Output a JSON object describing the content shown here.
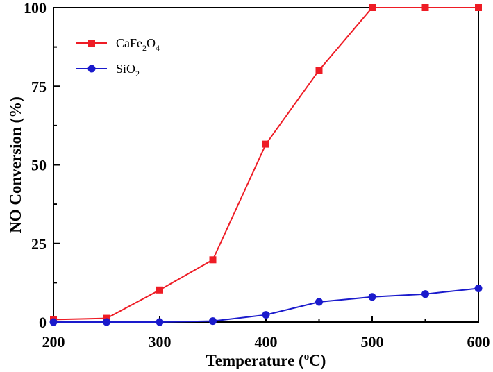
{
  "chart_data": {
    "type": "line",
    "xlabel": "Temperature (°C)",
    "xlabel_main": "Temperature (",
    "xlabel_degree": "o",
    "xlabel_unit": "C)",
    "ylabel": "NO Conversion (%)",
    "xlim": [
      200,
      600
    ],
    "ylim": [
      0,
      100
    ],
    "x_ticks": [
      200,
      300,
      400,
      500,
      600
    ],
    "y_ticks": [
      0,
      25,
      50,
      75,
      100
    ],
    "x_minor_ticks": [
      250,
      350,
      450,
      550
    ],
    "y_minor_ticks": [
      12.5,
      37.5,
      62.5,
      87.5
    ],
    "grid": false,
    "legend_position": "top-left",
    "x": [
      200,
      250,
      300,
      350,
      400,
      450,
      500,
      550,
      600
    ],
    "series": [
      {
        "name": "CaFe2O4",
        "legend_label": {
          "base1": "CaFe",
          "sub1": "2",
          "base2": "O",
          "sub2": "4"
        },
        "color": "#ee1c25",
        "marker": "square",
        "values": [
          0.8,
          1.2,
          10.2,
          19.8,
          56.6,
          80.1,
          100,
          100,
          100
        ]
      },
      {
        "name": "SiO2",
        "legend_label": {
          "base1": "SiO",
          "sub1": "2"
        },
        "color": "#1a1acc",
        "marker": "circle",
        "values": [
          0,
          0,
          0,
          0.3,
          2.3,
          6.4,
          8.0,
          8.9,
          10.7
        ]
      }
    ]
  }
}
